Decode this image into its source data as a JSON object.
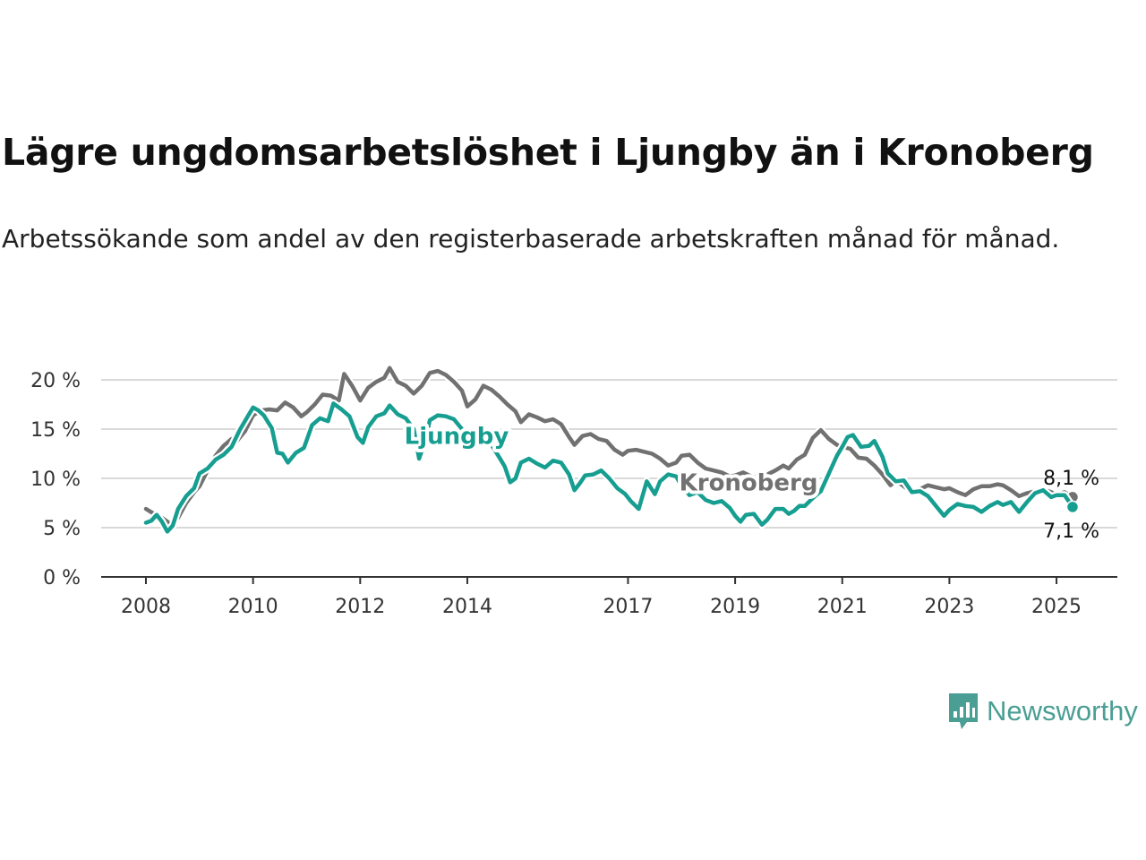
{
  "title": "Lägre ungdomsarbetslöshet i Ljungby än i Kronoberg",
  "subtitle": "Arbetssökande som andel av den registerbaserade arbetskraften månad för månad.",
  "brand": {
    "name": "Newsworthy",
    "logo_icon": "bar-chart-speech-bubble-icon",
    "color": "#4a9e94"
  },
  "chart_data": {
    "type": "line",
    "title": "Lägre ungdomsarbetslöshet i Ljungby än i Kronoberg",
    "subtitle": "Arbetssökande som andel av den registerbaserade arbetskraften månad för månad.",
    "xlabel": "",
    "ylabel": "",
    "xlim": [
      2008.0,
      2025.3
    ],
    "ylim": [
      0,
      20
    ],
    "y_ticks": [
      0,
      5,
      10,
      15,
      20
    ],
    "y_tick_labels": [
      "0 %",
      "5 %",
      "10 %",
      "15 %",
      "20 %"
    ],
    "x_ticks": [
      2008,
      2010,
      2012,
      2014,
      2017,
      2019,
      2021,
      2023,
      2025
    ],
    "x_tick_labels": [
      "2008",
      "2010",
      "2012",
      "2014",
      "2017",
      "2019",
      "2021",
      "2023",
      "2025"
    ],
    "grid": "horizontal",
    "legend": "none",
    "series": [
      {
        "name": "Kronoberg",
        "color": "#717171",
        "end_label": "8,1 %",
        "points": [
          [
            2008.0,
            6.9
          ],
          [
            2008.15,
            6.4
          ],
          [
            2008.3,
            6.0
          ],
          [
            2008.45,
            5.4
          ],
          [
            2008.6,
            6.0
          ],
          [
            2008.75,
            7.5
          ],
          [
            2008.9,
            8.6
          ],
          [
            2009.0,
            9.2
          ],
          [
            2009.15,
            10.8
          ],
          [
            2009.3,
            12.3
          ],
          [
            2009.45,
            13.3
          ],
          [
            2009.6,
            14.0
          ],
          [
            2009.7,
            13.8
          ],
          [
            2009.85,
            14.8
          ],
          [
            2010.0,
            16.4
          ],
          [
            2010.15,
            16.9
          ],
          [
            2010.3,
            17.0
          ],
          [
            2010.45,
            16.9
          ],
          [
            2010.6,
            17.7
          ],
          [
            2010.75,
            17.2
          ],
          [
            2010.9,
            16.3
          ],
          [
            2011.0,
            16.7
          ],
          [
            2011.15,
            17.5
          ],
          [
            2011.3,
            18.5
          ],
          [
            2011.45,
            18.4
          ],
          [
            2011.6,
            17.9
          ],
          [
            2011.7,
            20.6
          ],
          [
            2011.85,
            19.4
          ],
          [
            2012.0,
            17.9
          ],
          [
            2012.15,
            19.2
          ],
          [
            2012.3,
            19.8
          ],
          [
            2012.45,
            20.2
          ],
          [
            2012.55,
            21.2
          ],
          [
            2012.7,
            19.8
          ],
          [
            2012.85,
            19.4
          ],
          [
            2013.0,
            18.6
          ],
          [
            2013.15,
            19.4
          ],
          [
            2013.3,
            20.7
          ],
          [
            2013.45,
            20.9
          ],
          [
            2013.6,
            20.5
          ],
          [
            2013.75,
            19.8
          ],
          [
            2013.9,
            18.9
          ],
          [
            2014.0,
            17.3
          ],
          [
            2014.15,
            18.0
          ],
          [
            2014.3,
            19.4
          ],
          [
            2014.45,
            19.0
          ],
          [
            2014.6,
            18.3
          ],
          [
            2014.75,
            17.5
          ],
          [
            2014.9,
            16.8
          ],
          [
            2015.0,
            15.7
          ],
          [
            2015.15,
            16.5
          ],
          [
            2015.3,
            16.2
          ],
          [
            2015.45,
            15.8
          ],
          [
            2015.6,
            16.0
          ],
          [
            2015.75,
            15.5
          ],
          [
            2015.9,
            14.2
          ],
          [
            2016.0,
            13.4
          ],
          [
            2016.15,
            14.3
          ],
          [
            2016.3,
            14.5
          ],
          [
            2016.45,
            14.0
          ],
          [
            2016.6,
            13.8
          ],
          [
            2016.75,
            12.9
          ],
          [
            2016.9,
            12.4
          ],
          [
            2017.0,
            12.8
          ],
          [
            2017.15,
            12.9
          ],
          [
            2017.3,
            12.7
          ],
          [
            2017.45,
            12.5
          ],
          [
            2017.6,
            12.0
          ],
          [
            2017.75,
            11.3
          ],
          [
            2017.9,
            11.6
          ],
          [
            2018.0,
            12.3
          ],
          [
            2018.15,
            12.4
          ],
          [
            2018.3,
            11.6
          ],
          [
            2018.45,
            11.0
          ],
          [
            2018.6,
            10.8
          ],
          [
            2018.75,
            10.6
          ],
          [
            2018.9,
            10.2
          ],
          [
            2019.0,
            10.3
          ],
          [
            2019.15,
            10.6
          ],
          [
            2019.3,
            10.2
          ],
          [
            2019.45,
            10.0
          ],
          [
            2019.6,
            10.4
          ],
          [
            2019.75,
            10.8
          ],
          [
            2019.9,
            11.3
          ],
          [
            2020.0,
            11.0
          ],
          [
            2020.15,
            11.9
          ],
          [
            2020.3,
            12.4
          ],
          [
            2020.45,
            14.1
          ],
          [
            2020.6,
            14.9
          ],
          [
            2020.75,
            14.0
          ],
          [
            2020.9,
            13.4
          ],
          [
            2021.0,
            13.2
          ],
          [
            2021.15,
            13.0
          ],
          [
            2021.3,
            12.1
          ],
          [
            2021.45,
            12.0
          ],
          [
            2021.6,
            11.3
          ],
          [
            2021.75,
            10.4
          ],
          [
            2021.9,
            9.3
          ],
          [
            2022.0,
            9.8
          ],
          [
            2022.15,
            9.2
          ],
          [
            2022.3,
            8.6
          ],
          [
            2022.45,
            8.9
          ],
          [
            2022.6,
            9.3
          ],
          [
            2022.75,
            9.1
          ],
          [
            2022.9,
            8.9
          ],
          [
            2023.0,
            9.0
          ],
          [
            2023.15,
            8.6
          ],
          [
            2023.3,
            8.3
          ],
          [
            2023.45,
            8.9
          ],
          [
            2023.6,
            9.2
          ],
          [
            2023.75,
            9.2
          ],
          [
            2023.9,
            9.4
          ],
          [
            2024.0,
            9.3
          ],
          [
            2024.15,
            8.8
          ],
          [
            2024.3,
            8.2
          ],
          [
            2024.45,
            8.5
          ],
          [
            2024.6,
            8.7
          ],
          [
            2024.75,
            8.9
          ],
          [
            2024.9,
            8.6
          ],
          [
            2025.0,
            8.3
          ],
          [
            2025.15,
            8.6
          ],
          [
            2025.3,
            8.1
          ]
        ]
      },
      {
        "name": "Ljungby",
        "color": "#169e91",
        "end_label": "7,1 %",
        "points": [
          [
            2008.0,
            5.5
          ],
          [
            2008.1,
            5.7
          ],
          [
            2008.2,
            6.3
          ],
          [
            2008.3,
            5.6
          ],
          [
            2008.4,
            4.6
          ],
          [
            2008.5,
            5.2
          ],
          [
            2008.6,
            6.9
          ],
          [
            2008.75,
            8.2
          ],
          [
            2008.9,
            9.0
          ],
          [
            2009.0,
            10.5
          ],
          [
            2009.15,
            11.0
          ],
          [
            2009.3,
            11.9
          ],
          [
            2009.45,
            12.4
          ],
          [
            2009.6,
            13.2
          ],
          [
            2009.75,
            14.9
          ],
          [
            2009.9,
            16.3
          ],
          [
            2010.0,
            17.2
          ],
          [
            2010.1,
            16.9
          ],
          [
            2010.2,
            16.4
          ],
          [
            2010.35,
            15.1
          ],
          [
            2010.45,
            12.6
          ],
          [
            2010.55,
            12.5
          ],
          [
            2010.65,
            11.6
          ],
          [
            2010.8,
            12.6
          ],
          [
            2010.95,
            13.1
          ],
          [
            2011.1,
            15.4
          ],
          [
            2011.25,
            16.1
          ],
          [
            2011.4,
            15.8
          ],
          [
            2011.5,
            17.6
          ],
          [
            2011.65,
            17.0
          ],
          [
            2011.8,
            16.3
          ],
          [
            2011.95,
            14.2
          ],
          [
            2012.05,
            13.6
          ],
          [
            2012.15,
            15.2
          ],
          [
            2012.3,
            16.3
          ],
          [
            2012.45,
            16.6
          ],
          [
            2012.55,
            17.4
          ],
          [
            2012.7,
            16.5
          ],
          [
            2012.85,
            16.1
          ],
          [
            2013.0,
            15.0
          ],
          [
            2013.1,
            12.0
          ],
          [
            2013.2,
            13.6
          ],
          [
            2013.3,
            15.9
          ],
          [
            2013.45,
            16.4
          ],
          [
            2013.6,
            16.3
          ],
          [
            2013.75,
            16.0
          ],
          [
            2013.9,
            15.0
          ],
          [
            2014.0,
            14.3
          ],
          [
            2014.15,
            14.6
          ],
          [
            2014.3,
            14.8
          ],
          [
            2014.45,
            13.4
          ],
          [
            2014.6,
            12.1
          ],
          [
            2014.7,
            11.2
          ],
          [
            2014.8,
            9.6
          ],
          [
            2014.9,
            10.0
          ],
          [
            2015.0,
            11.6
          ],
          [
            2015.15,
            12.0
          ],
          [
            2015.3,
            11.5
          ],
          [
            2015.45,
            11.1
          ],
          [
            2015.6,
            11.8
          ],
          [
            2015.75,
            11.6
          ],
          [
            2015.9,
            10.4
          ],
          [
            2016.0,
            8.8
          ],
          [
            2016.1,
            9.5
          ],
          [
            2016.2,
            10.3
          ],
          [
            2016.35,
            10.4
          ],
          [
            2016.5,
            10.8
          ],
          [
            2016.65,
            10.0
          ],
          [
            2016.8,
            9.0
          ],
          [
            2016.95,
            8.4
          ],
          [
            2017.05,
            7.7
          ],
          [
            2017.2,
            6.9
          ],
          [
            2017.35,
            9.7
          ],
          [
            2017.5,
            8.4
          ],
          [
            2017.6,
            9.7
          ],
          [
            2017.75,
            10.4
          ],
          [
            2017.9,
            10.2
          ],
          [
            2018.0,
            9.2
          ],
          [
            2018.15,
            8.3
          ],
          [
            2018.3,
            8.6
          ],
          [
            2018.45,
            7.8
          ],
          [
            2018.6,
            7.5
          ],
          [
            2018.75,
            7.7
          ],
          [
            2018.9,
            7.0
          ],
          [
            2019.0,
            6.2
          ],
          [
            2019.1,
            5.6
          ],
          [
            2019.2,
            6.3
          ],
          [
            2019.35,
            6.4
          ],
          [
            2019.5,
            5.3
          ],
          [
            2019.6,
            5.8
          ],
          [
            2019.75,
            6.9
          ],
          [
            2019.9,
            6.9
          ],
          [
            2020.0,
            6.4
          ],
          [
            2020.1,
            6.7
          ],
          [
            2020.2,
            7.2
          ],
          [
            2020.3,
            7.2
          ],
          [
            2020.45,
            8.0
          ],
          [
            2020.6,
            8.7
          ],
          [
            2020.75,
            10.5
          ],
          [
            2020.9,
            12.3
          ],
          [
            2021.0,
            13.2
          ],
          [
            2021.1,
            14.2
          ],
          [
            2021.2,
            14.4
          ],
          [
            2021.35,
            13.2
          ],
          [
            2021.5,
            13.3
          ],
          [
            2021.6,
            13.8
          ],
          [
            2021.75,
            12.2
          ],
          [
            2021.85,
            10.5
          ],
          [
            2022.0,
            9.7
          ],
          [
            2022.15,
            9.8
          ],
          [
            2022.3,
            8.6
          ],
          [
            2022.45,
            8.7
          ],
          [
            2022.6,
            8.2
          ],
          [
            2022.75,
            7.2
          ],
          [
            2022.9,
            6.2
          ],
          [
            2023.0,
            6.8
          ],
          [
            2023.15,
            7.4
          ],
          [
            2023.3,
            7.2
          ],
          [
            2023.45,
            7.1
          ],
          [
            2023.6,
            6.6
          ],
          [
            2023.75,
            7.2
          ],
          [
            2023.9,
            7.6
          ],
          [
            2024.0,
            7.3
          ],
          [
            2024.15,
            7.6
          ],
          [
            2024.3,
            6.6
          ],
          [
            2024.45,
            7.6
          ],
          [
            2024.6,
            8.5
          ],
          [
            2024.75,
            8.8
          ],
          [
            2024.9,
            8.1
          ],
          [
            2025.0,
            8.3
          ],
          [
            2025.15,
            8.3
          ],
          [
            2025.3,
            7.1
          ]
        ]
      }
    ]
  }
}
